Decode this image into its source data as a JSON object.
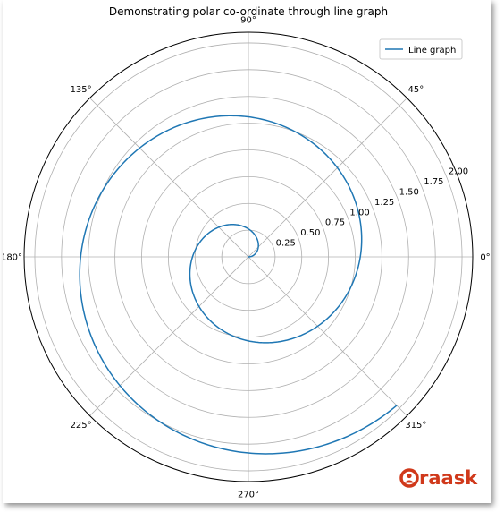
{
  "chart_data": {
    "type": "line",
    "projection": "polar",
    "title": "Demonstrating polar co-ordinate through line graph",
    "theta_ticks": [
      "0°",
      "45°",
      "90°",
      "135°",
      "180°",
      "225°",
      "270°",
      "315°"
    ],
    "r_ticks": [
      "0.25",
      "0.50",
      "0.75",
      "1.00",
      "1.25",
      "1.50",
      "1.75",
      "2.00"
    ],
    "r_tick_values": [
      0.25,
      0.5,
      0.75,
      1.0,
      1.25,
      1.5,
      1.75,
      2.0
    ],
    "rlim": [
      0,
      2.1
    ],
    "grid": true,
    "legend_position": "top-right",
    "series": [
      {
        "name": "Line graph",
        "color": "#1f77b4",
        "r_equals_theta_over_divisor": 6,
        "theta_range_degrees": [
          0,
          675
        ],
        "points": [
          {
            "theta_deg": 0,
            "r": 0.0
          },
          {
            "theta_deg": 90,
            "r": 0.26
          },
          {
            "theta_deg": 180,
            "r": 0.52
          },
          {
            "theta_deg": 270,
            "r": 0.79
          },
          {
            "theta_deg": 360,
            "r": 1.05
          },
          {
            "theta_deg": 450,
            "r": 1.31
          },
          {
            "theta_deg": 540,
            "r": 1.57
          },
          {
            "theta_deg": 630,
            "r": 1.83
          },
          {
            "theta_deg": 675,
            "r": 1.96
          }
        ]
      }
    ]
  },
  "watermark": {
    "text": "raask",
    "color": "#d0391b"
  }
}
